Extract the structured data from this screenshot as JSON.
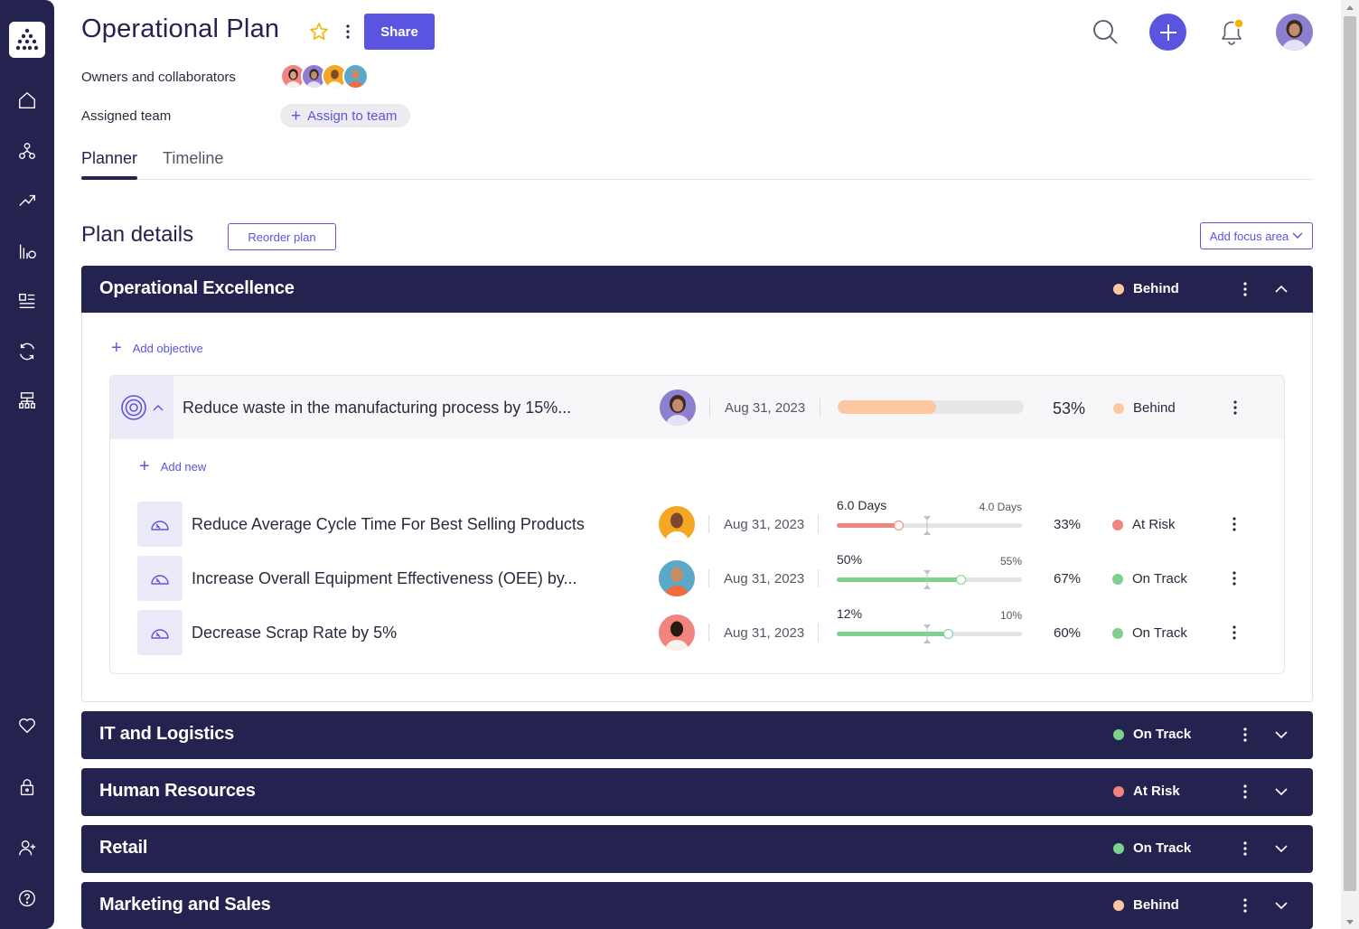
{
  "colors": {
    "sidebar_bg": "#24234f",
    "accent": "#5b54e1",
    "behind": "#fdc8a1",
    "at_risk": "#f1847e",
    "on_track": "#7ed08d",
    "bar_at_risk": "#f1847e",
    "bar_on_track": "#7ed08d"
  },
  "sidebar": {
    "logo_icon": "dots-pyramid-logo",
    "items": [
      {
        "icon": "home-icon"
      },
      {
        "icon": "hierarchy-icon"
      },
      {
        "icon": "trend-up-icon"
      },
      {
        "icon": "bar-chart-icon"
      },
      {
        "icon": "list-detail-icon"
      },
      {
        "icon": "sync-icon"
      },
      {
        "icon": "org-tree-icon"
      }
    ],
    "bottom_items": [
      {
        "icon": "heart-icon"
      },
      {
        "icon": "lock-icon"
      },
      {
        "icon": "add-user-icon"
      },
      {
        "icon": "help-icon"
      }
    ]
  },
  "header": {
    "title": "Operational Plan",
    "share_label": "Share",
    "owners_label": "Owners and collaborators",
    "team_label": "Assigned team",
    "assign_label": "Assign to team"
  },
  "tabs": [
    {
      "label": "Planner",
      "active": true
    },
    {
      "label": "Timeline",
      "active": false
    }
  ],
  "plan": {
    "title": "Plan details",
    "reorder_label": "Reorder plan",
    "add_focus_label": "Add focus area"
  },
  "focus_areas": [
    {
      "title": "Operational Excellence",
      "status": "Behind",
      "status_color": "#fdc8a1",
      "expanded": true,
      "add_objective_label": "Add objective",
      "objective": {
        "title": "Reduce waste in the manufacturing process by 15%...",
        "date": "Aug 31, 2023",
        "progress": 53,
        "progress_label": "53%",
        "status": "Behind",
        "add_new_label": "Add new",
        "key_results": [
          {
            "title": "Reduce Average Cycle Time For Best Selling Products",
            "date": "Aug 31, 2023",
            "current_label": "6.0 Days",
            "target_label": "4.0 Days",
            "value": 0.33,
            "pct_label": "33%",
            "status": "At Risk",
            "status_color": "#f1847e"
          },
          {
            "title": "Increase Overall Equipment Effectiveness (OEE) by...",
            "date": "Aug 31, 2023",
            "current_label": "50%",
            "target_label": "55%",
            "value": 0.67,
            "pct_label": "67%",
            "status": "On Track",
            "status_color": "#7ed08d"
          },
          {
            "title": "Decrease Scrap Rate by 5%",
            "date": "Aug 31, 2023",
            "current_label": "12%",
            "target_label": "10%",
            "value": 0.6,
            "pct_label": "60%",
            "status": "On Track",
            "status_color": "#7ed08d"
          }
        ]
      }
    },
    {
      "title": "IT and Logistics",
      "status": "On Track",
      "status_color": "#7ed08d",
      "expanded": false
    },
    {
      "title": "Human Resources",
      "status": "At Risk",
      "status_color": "#f1847e",
      "expanded": false
    },
    {
      "title": "Retail",
      "status": "On Track",
      "status_color": "#7ed08d",
      "expanded": false
    },
    {
      "title": "Marketing and Sales",
      "status": "Behind",
      "status_color": "#fdc8a1",
      "expanded": false
    }
  ]
}
